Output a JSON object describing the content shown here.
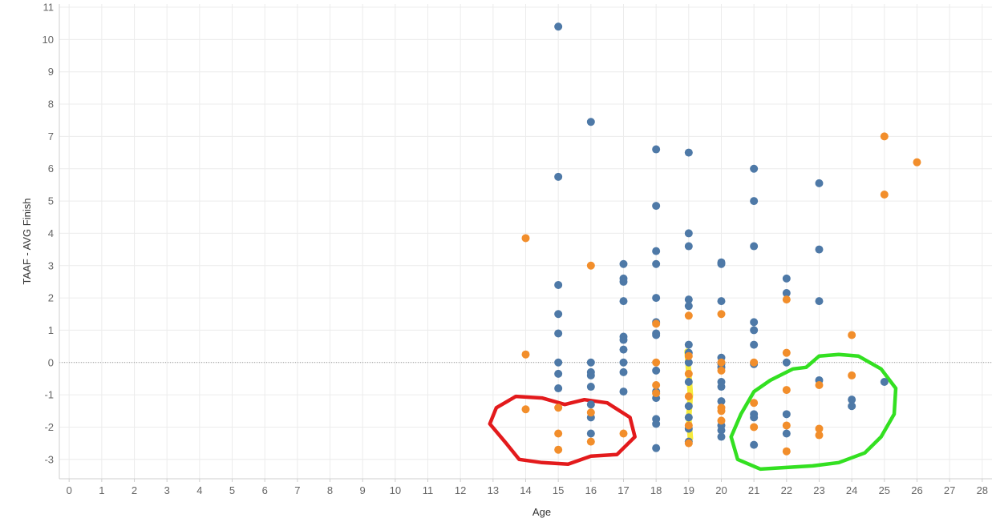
{
  "chart_data": {
    "type": "scatter",
    "xlabel": "Age",
    "ylabel": "TAAF - AVG Finish",
    "xlim": [
      -0.3,
      28.3
    ],
    "ylim": [
      -3.6,
      11.1
    ],
    "x_ticks": [
      0,
      1,
      2,
      3,
      4,
      5,
      6,
      7,
      8,
      9,
      10,
      11,
      12,
      13,
      14,
      15,
      16,
      17,
      18,
      19,
      20,
      21,
      22,
      23,
      24,
      25,
      26,
      27,
      28
    ],
    "y_ticks": [
      -3,
      -2,
      -1,
      0,
      1,
      2,
      3,
      4,
      5,
      6,
      7,
      8,
      9,
      10,
      11
    ],
    "grid": true,
    "zero_line": true,
    "colors": {
      "blue": "#4e79a7",
      "orange": "#f28e2b",
      "grid": "#ececec",
      "axis": "#cfcfcf"
    },
    "series": [
      {
        "color": "#4e79a7",
        "points": [
          [
            15,
            10.4
          ],
          [
            15,
            5.75
          ],
          [
            15,
            2.4
          ],
          [
            15,
            1.5
          ],
          [
            15,
            0.9
          ],
          [
            15,
            0.0
          ],
          [
            15,
            -0.35
          ],
          [
            15,
            -0.8
          ],
          [
            16,
            7.45
          ],
          [
            16,
            0.0
          ],
          [
            16,
            -0.3
          ],
          [
            16,
            -0.4
          ],
          [
            16,
            -0.75
          ],
          [
            16,
            -1.3
          ],
          [
            16,
            -1.7
          ],
          [
            16,
            -2.2
          ],
          [
            17,
            3.05
          ],
          [
            17,
            2.6
          ],
          [
            17,
            2.5
          ],
          [
            17,
            1.9
          ],
          [
            17,
            0.8
          ],
          [
            17,
            0.7
          ],
          [
            17,
            0.4
          ],
          [
            17,
            0.0
          ],
          [
            17,
            -0.3
          ],
          [
            17,
            -0.9
          ],
          [
            18,
            6.6
          ],
          [
            18,
            4.85
          ],
          [
            18,
            3.45
          ],
          [
            18,
            3.05
          ],
          [
            18,
            2.0
          ],
          [
            18,
            1.25
          ],
          [
            18,
            0.9
          ],
          [
            18,
            0.85
          ],
          [
            18,
            -0.25
          ],
          [
            18,
            -0.9
          ],
          [
            18,
            -1.1
          ],
          [
            18,
            -1.75
          ],
          [
            18,
            -1.9
          ],
          [
            18,
            -2.65
          ],
          [
            19,
            6.5
          ],
          [
            19,
            4.0
          ],
          [
            19,
            3.6
          ],
          [
            19,
            1.95
          ],
          [
            19,
            1.75
          ],
          [
            19,
            0.55
          ],
          [
            19,
            0.3
          ],
          [
            19,
            0.0
          ],
          [
            19,
            -0.6
          ],
          [
            19,
            -1.35
          ],
          [
            19,
            -1.7
          ],
          [
            19,
            -2.05
          ],
          [
            19,
            -2.45
          ],
          [
            20,
            3.1
          ],
          [
            20,
            3.05
          ],
          [
            20,
            1.9
          ],
          [
            20,
            0.15
          ],
          [
            20,
            -0.05
          ],
          [
            20,
            -0.15
          ],
          [
            20,
            -0.6
          ],
          [
            20,
            -0.75
          ],
          [
            20,
            -1.2
          ],
          [
            20,
            -1.95
          ],
          [
            20,
            -2.1
          ],
          [
            20,
            -2.3
          ],
          [
            21,
            6.0
          ],
          [
            21,
            5.0
          ],
          [
            21,
            3.6
          ],
          [
            21,
            1.25
          ],
          [
            21,
            1.0
          ],
          [
            21,
            0.55
          ],
          [
            21,
            -0.05
          ],
          [
            21,
            -1.6
          ],
          [
            21,
            -1.7
          ],
          [
            21,
            -2.55
          ],
          [
            22,
            2.6
          ],
          [
            22,
            2.15
          ],
          [
            22,
            0.0
          ],
          [
            22,
            -1.6
          ],
          [
            22,
            -2.2
          ],
          [
            23,
            5.55
          ],
          [
            23,
            3.5
          ],
          [
            23,
            1.9
          ],
          [
            23,
            -0.55
          ],
          [
            24,
            -1.15
          ],
          [
            24,
            -1.35
          ],
          [
            25,
            -0.6
          ]
        ]
      },
      {
        "color": "#f28e2b",
        "points": [
          [
            14,
            3.85
          ],
          [
            14,
            0.25
          ],
          [
            14,
            -1.45
          ],
          [
            15,
            -1.4
          ],
          [
            15,
            -2.2
          ],
          [
            15,
            -2.7
          ],
          [
            16,
            3.0
          ],
          [
            16,
            -1.55
          ],
          [
            16,
            -2.45
          ],
          [
            17,
            -2.2
          ],
          [
            18,
            0.0
          ],
          [
            18,
            -0.7
          ],
          [
            18,
            -0.95
          ],
          [
            18,
            1.2
          ],
          [
            19,
            1.45
          ],
          [
            19,
            0.2
          ],
          [
            19,
            -0.35
          ],
          [
            19,
            -1.05
          ],
          [
            19,
            -1.95
          ],
          [
            19,
            -2.5
          ],
          [
            20,
            1.5
          ],
          [
            20,
            0.0
          ],
          [
            20,
            -0.25
          ],
          [
            20,
            -1.4
          ],
          [
            20,
            -1.5
          ],
          [
            20,
            -1.8
          ],
          [
            21,
            0.0
          ],
          [
            21,
            -1.25
          ],
          [
            21,
            -2.0
          ],
          [
            22,
            1.95
          ],
          [
            22,
            0.3
          ],
          [
            22,
            -0.85
          ],
          [
            22,
            -1.95
          ],
          [
            22,
            -2.75
          ],
          [
            23,
            -0.7
          ],
          [
            23,
            -2.05
          ],
          [
            23,
            -2.25
          ],
          [
            24,
            0.85
          ],
          [
            24,
            -0.4
          ],
          [
            25,
            7.0
          ],
          [
            25,
            5.2
          ],
          [
            26,
            6.2
          ]
        ]
      }
    ],
    "annotations": [
      {
        "shape": "freehand-loop",
        "color": "#e31a1c",
        "points": [
          [
            13.7,
            -1.05
          ],
          [
            14.5,
            -1.1
          ],
          [
            15.2,
            -1.3
          ],
          [
            15.8,
            -1.15
          ],
          [
            16.5,
            -1.25
          ],
          [
            17.2,
            -1.7
          ],
          [
            17.35,
            -2.3
          ],
          [
            16.8,
            -2.85
          ],
          [
            16.0,
            -2.9
          ],
          [
            15.3,
            -3.15
          ],
          [
            14.5,
            -3.1
          ],
          [
            13.8,
            -3.0
          ],
          [
            13.4,
            -2.5
          ],
          [
            12.9,
            -1.9
          ],
          [
            13.1,
            -1.4
          ],
          [
            13.7,
            -1.05
          ]
        ]
      },
      {
        "shape": "freehand-loop",
        "color": "#33e021",
        "points": [
          [
            20.6,
            -1.6
          ],
          [
            21.0,
            -0.9
          ],
          [
            21.5,
            -0.55
          ],
          [
            22.2,
            -0.2
          ],
          [
            22.6,
            -0.15
          ],
          [
            23.0,
            0.2
          ],
          [
            23.6,
            0.25
          ],
          [
            24.2,
            0.2
          ],
          [
            24.9,
            -0.2
          ],
          [
            25.35,
            -0.8
          ],
          [
            25.3,
            -1.6
          ],
          [
            24.9,
            -2.3
          ],
          [
            24.4,
            -2.8
          ],
          [
            23.6,
            -3.1
          ],
          [
            22.8,
            -3.2
          ],
          [
            22.0,
            -3.25
          ],
          [
            21.2,
            -3.3
          ],
          [
            20.5,
            -3.0
          ],
          [
            20.3,
            -2.3
          ],
          [
            20.6,
            -1.6
          ]
        ]
      },
      {
        "shape": "stroke",
        "color": "#f5e61a",
        "points": [
          [
            18.95,
            0.35
          ],
          [
            19.0,
            -0.3
          ],
          [
            19.05,
            -1.0
          ],
          [
            19.0,
            -1.7
          ],
          [
            19.05,
            -2.35
          ]
        ]
      }
    ]
  }
}
